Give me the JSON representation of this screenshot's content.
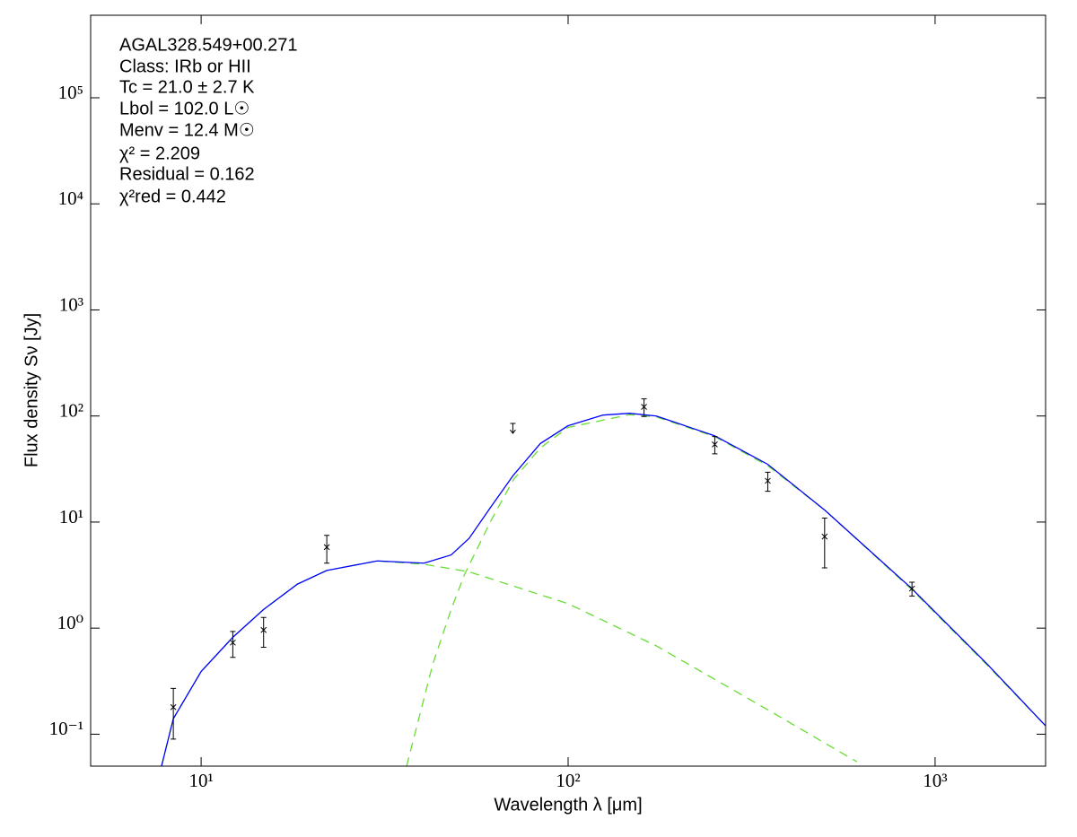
{
  "chart_data": {
    "type": "line",
    "xlabel": "Wavelength λ [μm]",
    "ylabel": "Flux density Sν [Jy]",
    "xscale": "log",
    "yscale": "log",
    "xlim": [
      5,
      2000
    ],
    "ylim": [
      0.05,
      600000
    ],
    "xticks": [
      {
        "value": 10,
        "label": "10¹"
      },
      {
        "value": 100,
        "label": "10²"
      },
      {
        "value": 1000,
        "label": "10³"
      }
    ],
    "yticks": [
      {
        "value": 0.1,
        "label": "10⁻¹"
      },
      {
        "value": 1,
        "label": "10⁰"
      },
      {
        "value": 10,
        "label": "10¹"
      },
      {
        "value": 100,
        "label": "10²"
      },
      {
        "value": 1000,
        "label": "10³"
      },
      {
        "value": 10000,
        "label": "10⁴"
      },
      {
        "value": 100000,
        "label": "10⁵"
      }
    ],
    "annotations": [
      "AGAL328.549+00.271",
      "Class: IRb or HII",
      "Tc = 21.0 ± 2.7 K",
      "Lbol = 102.0 L☉",
      "Menv = 12.4 M☉",
      "χ² = 2.209",
      "Residual = 0.162",
      "χ²red = 0.442"
    ],
    "series": [
      {
        "color": "#66dd33",
        "style": "dashed",
        "x": [
          7.8,
          8.4,
          10,
          12.2,
          14.8,
          18.3,
          22,
          30.2,
          40.5,
          53.7,
          100,
          174,
          350,
          612
        ],
        "values": [
          0.05,
          0.14,
          0.39,
          0.82,
          1.5,
          2.6,
          3.5,
          4.3,
          4.0,
          3.4,
          1.7,
          0.68,
          0.17,
          0.055
        ]
      },
      {
        "color": "#66dd33",
        "style": "dashed",
        "x": [
          36.3,
          42.8,
          48,
          52.2,
          61.7,
          70.9,
          84,
          100,
          147,
          174,
          251,
          350,
          500,
          865,
          1385,
          2000
        ],
        "values": [
          0.05,
          0.46,
          1.5,
          3.2,
          10.4,
          25,
          50,
          78,
          103,
          98,
          64,
          34,
          13,
          2.3,
          0.45,
          0.12
        ]
      },
      {
        "color": "#0000ff",
        "style": "solid",
        "x": [
          7.8,
          8.4,
          10,
          12.2,
          14.8,
          18.3,
          22,
          30.2,
          40.5,
          48,
          53.7,
          61.7,
          70.9,
          84,
          100,
          124.5,
          147,
          174,
          251,
          350,
          500,
          865,
          1385,
          2000
        ],
        "values": [
          0.05,
          0.14,
          0.39,
          0.82,
          1.5,
          2.6,
          3.5,
          4.3,
          4.1,
          4.9,
          7.0,
          14,
          27.6,
          55,
          81,
          102,
          106,
          100,
          65,
          35,
          13,
          2.35,
          0.46,
          0.12
        ]
      }
    ],
    "points": {
      "color": "#000000",
      "x": [
        8.4,
        12.2,
        14.8,
        22,
        161,
        251,
        350,
        500,
        865
      ],
      "values": [
        0.18,
        0.73,
        0.96,
        5.8,
        122,
        54,
        24.5,
        7.3,
        2.36
      ],
      "errors": [
        0.09,
        0.2,
        0.3,
        1.7,
        23,
        10,
        5,
        3.6,
        0.35
      ]
    },
    "upper_limits": {
      "color": "#000000",
      "x": [
        70.7
      ],
      "values": [
        85
      ]
    }
  }
}
